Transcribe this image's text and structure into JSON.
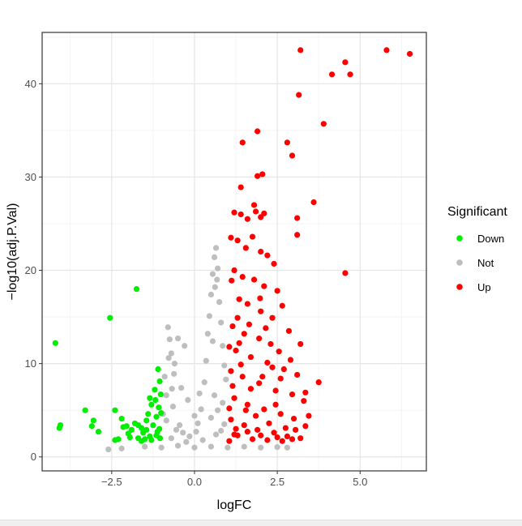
{
  "chart_data": {
    "type": "scatter",
    "title": "",
    "xlabel": "logFC",
    "ylabel": "−log10(adj.P.Val)",
    "xlim": [
      -4.6,
      7.0
    ],
    "ylim": [
      -1.5,
      45.5
    ],
    "x_ticks": [
      -2.5,
      0.0,
      2.5,
      5.0
    ],
    "x_tick_labels": [
      "−2.5",
      "0.0",
      "2.5",
      "5.0"
    ],
    "y_ticks": [
      0,
      10,
      20,
      30,
      40
    ],
    "y_tick_labels": [
      "0",
      "10",
      "20",
      "30",
      "40"
    ],
    "grid": true,
    "legend": {
      "title": "Significant",
      "placement": "right",
      "items": [
        {
          "label": "Down",
          "color": "#00ee00"
        },
        {
          "label": "Not",
          "color": "#bebebe"
        },
        {
          "label": "Up",
          "color": "#ff0000"
        }
      ]
    },
    "series": [
      {
        "name": "Down",
        "color": "#00ee00",
        "points": [
          [
            -4.2,
            12.2
          ],
          [
            -4.05,
            3.4
          ],
          [
            -4.08,
            3.1
          ],
          [
            -3.3,
            5.0
          ],
          [
            -3.05,
            3.9
          ],
          [
            -3.1,
            3.3
          ],
          [
            -2.9,
            2.7
          ],
          [
            -2.55,
            14.9
          ],
          [
            -2.4,
            5.0
          ],
          [
            -2.4,
            1.8
          ],
          [
            -2.2,
            4.1
          ],
          [
            -2.15,
            3.2
          ],
          [
            -2.0,
            2.5
          ],
          [
            -1.95,
            2.1
          ],
          [
            -1.8,
            3.6
          ],
          [
            -1.75,
            18.0
          ],
          [
            -1.7,
            2.0
          ],
          [
            -1.6,
            3.1
          ],
          [
            -1.55,
            2.6
          ],
          [
            -1.5,
            1.9
          ],
          [
            -1.45,
            3.9
          ],
          [
            -1.4,
            4.6
          ],
          [
            -1.35,
            2.2
          ],
          [
            -1.3,
            5.6
          ],
          [
            -1.25,
            3.4
          ],
          [
            -1.2,
            7.2
          ],
          [
            -1.18,
            6.1
          ],
          [
            -1.15,
            4.3
          ],
          [
            -1.12,
            2.7
          ],
          [
            -1.1,
            9.4
          ],
          [
            -1.08,
            5.3
          ],
          [
            -1.06,
            3.0
          ],
          [
            -1.04,
            2.0
          ],
          [
            -1.02,
            6.7
          ],
          [
            -1.01,
            4.7
          ],
          [
            -1.6,
            1.7
          ],
          [
            -1.9,
            2.9
          ],
          [
            -2.3,
            1.9
          ],
          [
            -1.3,
            1.8
          ],
          [
            -1.45,
            2.9
          ],
          [
            -1.7,
            3.4
          ],
          [
            -2.05,
            3.3
          ],
          [
            -1.15,
            2.3
          ],
          [
            -1.05,
            8.1
          ],
          [
            -1.35,
            6.3
          ]
        ]
      },
      {
        "name": "Not",
        "color": "#bebebe",
        "points": [
          [
            -0.8,
            13.9
          ],
          [
            -0.75,
            12.6
          ],
          [
            -0.7,
            11.1
          ],
          [
            -0.6,
            10.0
          ],
          [
            -0.5,
            12.7
          ],
          [
            -0.3,
            11.9
          ],
          [
            -0.9,
            8.6
          ],
          [
            -0.4,
            7.4
          ],
          [
            -0.2,
            6.1
          ],
          [
            0.0,
            4.4
          ],
          [
            0.1,
            3.6
          ],
          [
            0.2,
            5.1
          ],
          [
            0.4,
            13.2
          ],
          [
            0.45,
            15.1
          ],
          [
            0.5,
            17.4
          ],
          [
            0.55,
            19.6
          ],
          [
            0.6,
            21.4
          ],
          [
            0.65,
            22.4
          ],
          [
            0.7,
            20.2
          ],
          [
            0.75,
            16.6
          ],
          [
            0.8,
            14.4
          ],
          [
            0.85,
            11.9
          ],
          [
            0.9,
            9.8
          ],
          [
            0.95,
            8.3
          ],
          [
            -0.95,
            4.6
          ],
          [
            -0.85,
            3.9
          ],
          [
            -0.65,
            5.4
          ],
          [
            -0.55,
            2.9
          ],
          [
            -0.45,
            3.4
          ],
          [
            -0.35,
            2.6
          ],
          [
            0.3,
            8.0
          ],
          [
            0.35,
            10.3
          ],
          [
            0.6,
            6.6
          ],
          [
            0.7,
            5.0
          ],
          [
            0.8,
            2.8
          ],
          [
            0.9,
            3.5
          ],
          [
            -1.5,
            1.1
          ],
          [
            -1.0,
            1.0
          ],
          [
            -0.5,
            1.2
          ],
          [
            0.0,
            1.0
          ],
          [
            0.5,
            1.1
          ],
          [
            1.0,
            1.0
          ],
          [
            1.5,
            1.1
          ],
          [
            2.0,
            1.0
          ],
          [
            2.5,
            1.05
          ],
          [
            2.8,
            1.0
          ],
          [
            -2.2,
            0.9
          ],
          [
            -2.6,
            0.8
          ],
          [
            0.25,
            1.8
          ],
          [
            -0.25,
            1.6
          ],
          [
            0.65,
            2.4
          ],
          [
            -0.7,
            2.0
          ],
          [
            0.05,
            2.7
          ],
          [
            0.15,
            6.8
          ],
          [
            -0.15,
            2.2
          ],
          [
            0.5,
            4.2
          ],
          [
            0.85,
            5.8
          ],
          [
            0.55,
            12.4
          ],
          [
            0.62,
            18.2
          ],
          [
            0.68,
            19.0
          ],
          [
            -0.62,
            8.9
          ],
          [
            -0.78,
            10.6
          ],
          [
            -0.85,
            6.6
          ],
          [
            -0.68,
            7.3
          ]
        ]
      },
      {
        "name": "Up",
        "color": "#ff0000",
        "points": [
          [
            3.2,
            43.6
          ],
          [
            5.8,
            43.6
          ],
          [
            6.5,
            43.2
          ],
          [
            4.55,
            42.3
          ],
          [
            4.15,
            41.0
          ],
          [
            4.7,
            41.0
          ],
          [
            3.15,
            38.8
          ],
          [
            3.9,
            35.7
          ],
          [
            1.9,
            34.9
          ],
          [
            1.45,
            33.7
          ],
          [
            2.8,
            33.7
          ],
          [
            2.95,
            32.3
          ],
          [
            1.9,
            30.1
          ],
          [
            2.05,
            30.3
          ],
          [
            1.4,
            28.9
          ],
          [
            1.8,
            27.0
          ],
          [
            3.6,
            27.3
          ],
          [
            1.2,
            26.2
          ],
          [
            1.4,
            26.0
          ],
          [
            1.6,
            25.5
          ],
          [
            1.85,
            26.3
          ],
          [
            2.0,
            25.7
          ],
          [
            2.1,
            26.1
          ],
          [
            3.1,
            25.6
          ],
          [
            3.1,
            23.8
          ],
          [
            4.55,
            19.7
          ],
          [
            1.1,
            23.5
          ],
          [
            1.3,
            23.2
          ],
          [
            1.55,
            22.4
          ],
          [
            1.75,
            23.6
          ],
          [
            2.0,
            22.0
          ],
          [
            2.2,
            21.6
          ],
          [
            2.4,
            20.7
          ],
          [
            1.2,
            20.0
          ],
          [
            1.45,
            19.3
          ],
          [
            1.8,
            19.0
          ],
          [
            2.1,
            18.3
          ],
          [
            2.5,
            17.8
          ],
          [
            1.35,
            16.9
          ],
          [
            1.6,
            16.4
          ],
          [
            2.0,
            15.6
          ],
          [
            2.35,
            14.9
          ],
          [
            2.65,
            16.2
          ],
          [
            1.15,
            14.0
          ],
          [
            1.5,
            13.2
          ],
          [
            1.95,
            12.7
          ],
          [
            2.3,
            12.1
          ],
          [
            2.85,
            13.5
          ],
          [
            3.2,
            12.1
          ],
          [
            1.25,
            11.4
          ],
          [
            1.7,
            10.7
          ],
          [
            2.2,
            10.1
          ],
          [
            2.7,
            9.4
          ],
          [
            3.1,
            8.8
          ],
          [
            3.75,
            8.0
          ],
          [
            1.1,
            9.2
          ],
          [
            1.45,
            8.6
          ],
          [
            1.95,
            7.9
          ],
          [
            2.45,
            7.1
          ],
          [
            2.95,
            6.7
          ],
          [
            3.3,
            6.0
          ],
          [
            1.2,
            6.3
          ],
          [
            1.6,
            5.6
          ],
          [
            2.1,
            5.1
          ],
          [
            2.6,
            4.6
          ],
          [
            3.0,
            4.1
          ],
          [
            3.45,
            4.4
          ],
          [
            1.1,
            4.0
          ],
          [
            1.5,
            3.4
          ],
          [
            1.9,
            2.9
          ],
          [
            2.4,
            2.6
          ],
          [
            2.8,
            2.2
          ],
          [
            3.2,
            2.0
          ],
          [
            1.3,
            2.3
          ],
          [
            1.75,
            1.9
          ],
          [
            2.2,
            1.8
          ],
          [
            2.65,
            1.7
          ],
          [
            1.05,
            1.7
          ],
          [
            1.35,
            12.2
          ],
          [
            1.65,
            14.2
          ],
          [
            2.55,
            11.3
          ],
          [
            2.15,
            13.8
          ],
          [
            1.05,
            5.2
          ],
          [
            1.15,
            7.6
          ],
          [
            1.25,
            3.0
          ],
          [
            1.4,
            9.9
          ],
          [
            1.85,
            4.4
          ],
          [
            2.05,
            8.6
          ],
          [
            2.45,
            5.6
          ],
          [
            2.75,
            3.1
          ],
          [
            3.05,
            2.9
          ],
          [
            3.35,
            3.3
          ],
          [
            1.05,
            11.8
          ],
          [
            1.7,
            7.3
          ],
          [
            2.35,
            9.6
          ],
          [
            2.9,
            10.4
          ],
          [
            3.35,
            6.9
          ],
          [
            1.55,
            5.0
          ],
          [
            2.25,
            3.6
          ],
          [
            1.12,
            18.9
          ],
          [
            1.3,
            14.9
          ],
          [
            1.98,
            17.0
          ],
          [
            2.6,
            8.4
          ],
          [
            1.2,
            2.4
          ],
          [
            1.6,
            2.7
          ],
          [
            2.0,
            2.3
          ],
          [
            2.5,
            2.1
          ],
          [
            2.95,
            1.9
          ]
        ]
      }
    ]
  }
}
